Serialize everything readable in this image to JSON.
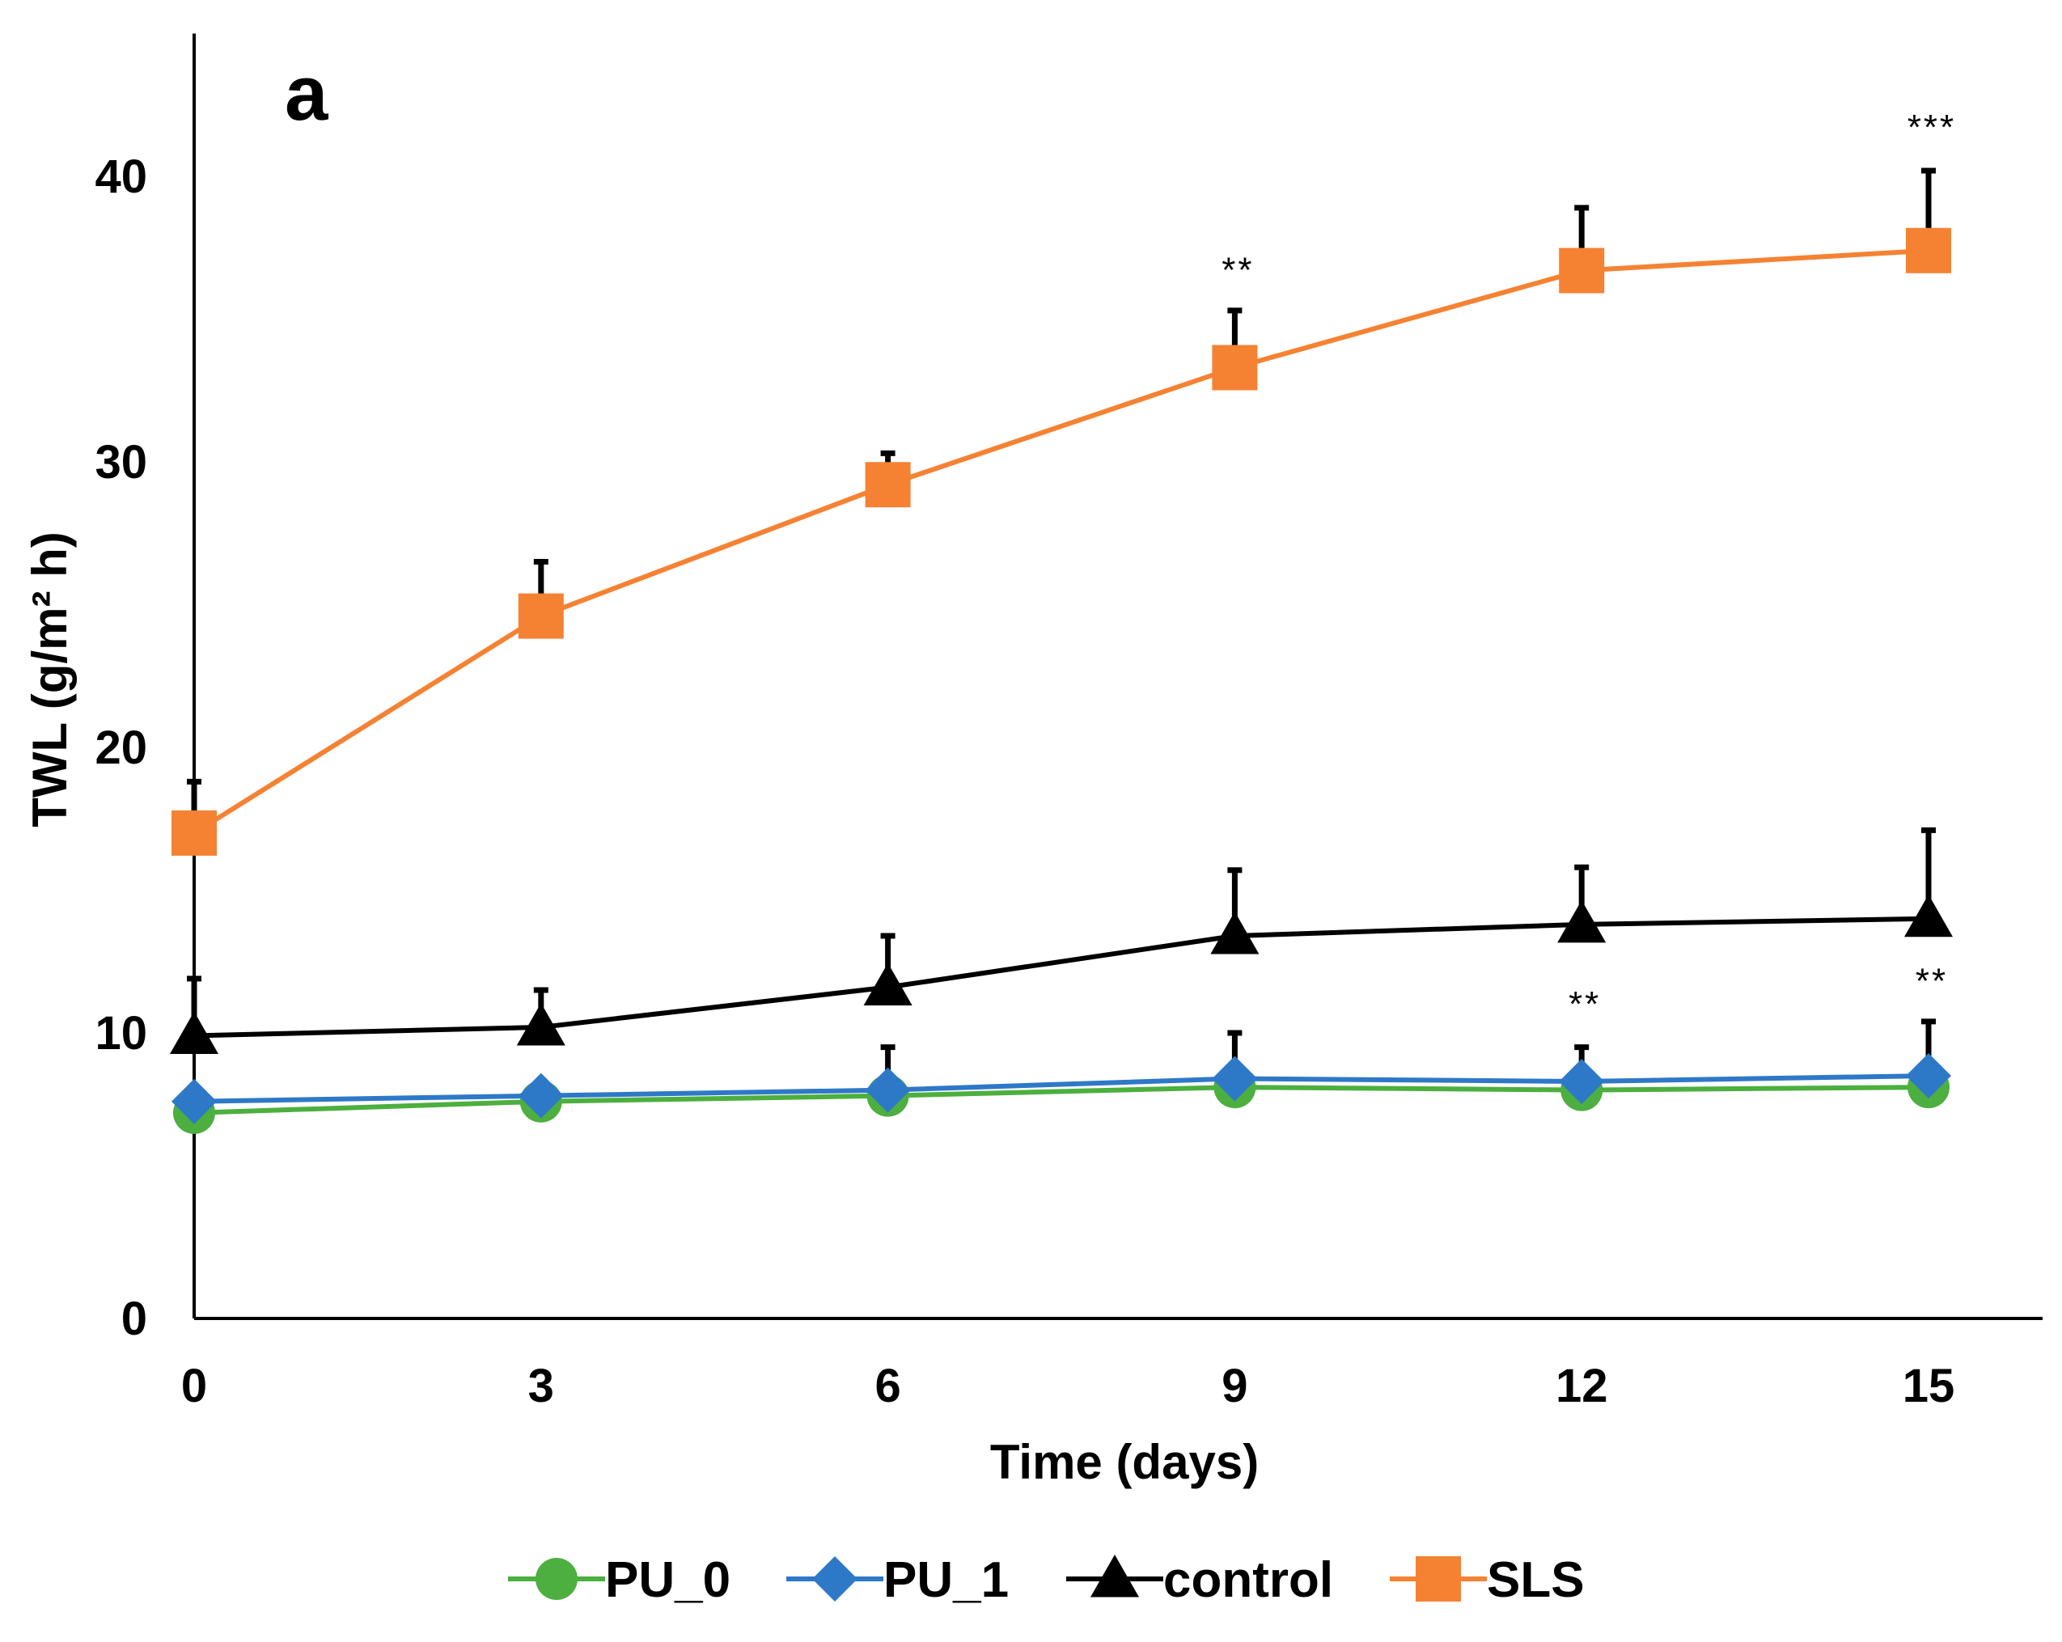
{
  "chart_data": {
    "type": "line",
    "panel_label": "a",
    "xlabel": "Time (days)",
    "ylabel": "TWL (g/m² h)",
    "x": [
      0,
      3,
      6,
      9,
      12,
      15
    ],
    "xlim": [
      0,
      16
    ],
    "ylim": [
      0,
      45
    ],
    "yticks": [
      0,
      10,
      20,
      30,
      40
    ],
    "legend_position": "bottom",
    "series": [
      {
        "name": "PU_0",
        "color": "#4CAF3F",
        "marker": "circle",
        "values": [
          7.2,
          7.6,
          7.8,
          8.1,
          8.0,
          8.1
        ],
        "errors": [
          0,
          0,
          0,
          0,
          0,
          0
        ]
      },
      {
        "name": "PU_1",
        "color": "#2E78C8",
        "marker": "diamond",
        "values": [
          7.6,
          7.8,
          8.0,
          8.4,
          8.3,
          8.5
        ],
        "errors": [
          0,
          0,
          1.5,
          1.6,
          1.2,
          1.9
        ]
      },
      {
        "name": "control",
        "color": "#000000",
        "marker": "triangle",
        "values": [
          9.9,
          10.2,
          11.6,
          13.4,
          13.8,
          14.0
        ],
        "errors": [
          2.0,
          1.3,
          1.8,
          2.3,
          2.0,
          3.1
        ]
      },
      {
        "name": "SLS",
        "color": "#F58233",
        "marker": "square",
        "values": [
          17.0,
          24.6,
          29.2,
          33.3,
          36.7,
          37.4
        ],
        "errors": [
          1.8,
          1.9,
          1.1,
          2.0,
          2.2,
          2.8
        ]
      }
    ],
    "annotations": [
      {
        "text": "**",
        "x": 9,
        "y": 36.3
      },
      {
        "text": "***",
        "x": 15,
        "y": 41.3
      },
      {
        "text": "**",
        "x": 12,
        "y": 10.6
      },
      {
        "text": "**",
        "x": 15,
        "y": 11.4
      }
    ]
  }
}
